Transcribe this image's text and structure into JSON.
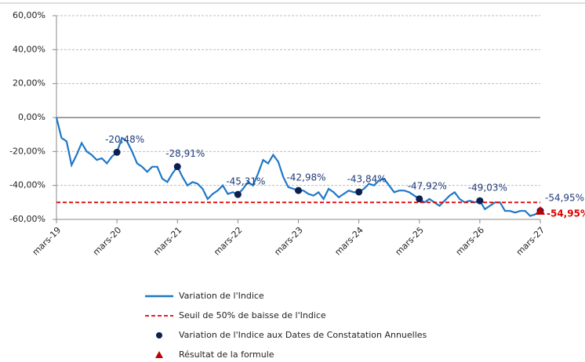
{
  "chart_data": {
    "type": "line",
    "categories": [
      "mars-19",
      null,
      null,
      null,
      null,
      null,
      null,
      null,
      null,
      null,
      null,
      null,
      "mars-20",
      null,
      null,
      null,
      null,
      null,
      null,
      null,
      null,
      null,
      null,
      null,
      "mars-21",
      null,
      null,
      null,
      null,
      null,
      null,
      null,
      null,
      null,
      null,
      null,
      "mars-22",
      null,
      null,
      null,
      null,
      null,
      null,
      null,
      null,
      null,
      null,
      null,
      "mars-23",
      null,
      null,
      null,
      null,
      null,
      null,
      null,
      null,
      null,
      null,
      null,
      "mars-24",
      null,
      null,
      null,
      null,
      null,
      null,
      null,
      null,
      null,
      null,
      null,
      "mars-25",
      null,
      null,
      null,
      null,
      null,
      null,
      null,
      null,
      null,
      null,
      null,
      "mars-26",
      null,
      null,
      null,
      null,
      null,
      null,
      null,
      null,
      null,
      null,
      null,
      "mars-27"
    ],
    "ylim": [
      -60,
      60
    ],
    "yticks": [
      {
        "value": -60,
        "label": "-60,00%"
      },
      {
        "value": -40,
        "label": "-40,00%"
      },
      {
        "value": -20,
        "label": "-20,00%"
      },
      {
        "value": 0,
        "label": "0,00%"
      },
      {
        "value": 20,
        "label": "20,00%"
      },
      {
        "value": 40,
        "label": "40,00%"
      },
      {
        "value": 60,
        "label": "60,00%"
      }
    ],
    "grid": true,
    "series": [
      {
        "name": "Variation de l'Indice",
        "color": "#1f77c8",
        "values": [
          0,
          -12,
          -14,
          -28,
          -22,
          -15,
          -20,
          -22,
          -25,
          -24,
          -27,
          -23,
          -20.48,
          -12,
          -14,
          -20,
          -27,
          -29,
          -32,
          -29,
          -29,
          -36,
          -38,
          -33,
          -28.91,
          -35,
          -40,
          -38,
          -39,
          -42,
          -48,
          -45,
          -43,
          -40,
          -45,
          -44,
          -45.31,
          -42,
          -38,
          -40,
          -33,
          -25,
          -27,
          -22,
          -26,
          -35,
          -41,
          -42,
          -42.98,
          -43,
          -45,
          -46,
          -44,
          -48,
          -42,
          -44,
          -47,
          -45,
          -43,
          -44,
          -43.84,
          -42,
          -39,
          -40,
          -37,
          -36,
          -40,
          -44,
          -43,
          -43,
          -44,
          -46,
          -47.92,
          -50,
          -48,
          -50,
          -52,
          -49,
          -46,
          -44,
          -48,
          -50,
          -49,
          -50,
          -49.03,
          -54,
          -52,
          -50,
          -50,
          -55,
          -55,
          -56,
          -55,
          -55,
          -58,
          -57,
          -54.95
        ]
      },
      {
        "name": "Seuil de 50% de baisse de l'Indice",
        "color": "#e00000",
        "dash": true,
        "value": -50
      },
      {
        "name": "Variation de l'Indice aux Dates de Constatation Annuelles",
        "color": "#0d1f4f",
        "marker": "circle",
        "label_color": "#1f3a78",
        "values": [
          null,
          null,
          null,
          null,
          null,
          null,
          null,
          null,
          null,
          null,
          null,
          null,
          -20.48,
          null,
          null,
          null,
          null,
          null,
          null,
          null,
          null,
          null,
          null,
          null,
          -28.91,
          null,
          null,
          null,
          null,
          null,
          null,
          null,
          null,
          null,
          null,
          null,
          -45.31,
          null,
          null,
          null,
          null,
          null,
          null,
          null,
          null,
          null,
          null,
          null,
          -42.98,
          null,
          null,
          null,
          null,
          null,
          null,
          null,
          null,
          null,
          null,
          null,
          -43.84,
          null,
          null,
          null,
          null,
          null,
          null,
          null,
          null,
          null,
          null,
          null,
          -47.92,
          null,
          null,
          null,
          null,
          null,
          null,
          null,
          null,
          null,
          null,
          null,
          -49.03,
          null,
          null,
          null,
          null,
          null,
          null,
          null,
          null,
          null,
          null,
          null,
          -54.95
        ],
        "value_labels": [
          null,
          null,
          null,
          null,
          null,
          null,
          null,
          null,
          null,
          null,
          null,
          null,
          "-20,48%",
          null,
          null,
          null,
          null,
          null,
          null,
          null,
          null,
          null,
          null,
          null,
          "-28,91%",
          null,
          null,
          null,
          null,
          null,
          null,
          null,
          null,
          null,
          null,
          null,
          "-45,31%",
          null,
          null,
          null,
          null,
          null,
          null,
          null,
          null,
          null,
          null,
          null,
          "-42,98%",
          null,
          null,
          null,
          null,
          null,
          null,
          null,
          null,
          null,
          null,
          null,
          "-43,84%",
          null,
          null,
          null,
          null,
          null,
          null,
          null,
          null,
          null,
          null,
          null,
          "-47,92%",
          null,
          null,
          null,
          null,
          null,
          null,
          null,
          null,
          null,
          null,
          null,
          "-49,03%",
          null,
          null,
          null,
          null,
          null,
          null,
          null,
          null,
          null,
          null,
          null,
          "-54,95%"
        ]
      },
      {
        "name": "Résultat de la formule",
        "color": "#c00000",
        "marker": "triangle",
        "label_color": "#e00000",
        "values": [
          null,
          null,
          null,
          null,
          null,
          null,
          null,
          null,
          null,
          null,
          null,
          null,
          null,
          null,
          null,
          null,
          null,
          null,
          null,
          null,
          null,
          null,
          null,
          null,
          null,
          null,
          null,
          null,
          null,
          null,
          null,
          null,
          null,
          null,
          null,
          null,
          null,
          null,
          null,
          null,
          null,
          null,
          null,
          null,
          null,
          null,
          null,
          null,
          null,
          null,
          null,
          null,
          null,
          null,
          null,
          null,
          null,
          null,
          null,
          null,
          null,
          null,
          null,
          null,
          null,
          null,
          null,
          null,
          null,
          null,
          null,
          null,
          null,
          null,
          null,
          null,
          null,
          null,
          null,
          null,
          null,
          null,
          null,
          null,
          null,
          null,
          null,
          null,
          null,
          null,
          null,
          null,
          null,
          null,
          null,
          null,
          -54.95
        ],
        "value_labels": [
          null,
          null,
          null,
          null,
          null,
          null,
          null,
          null,
          null,
          null,
          null,
          null,
          null,
          null,
          null,
          null,
          null,
          null,
          null,
          null,
          null,
          null,
          null,
          null,
          null,
          null,
          null,
          null,
          null,
          null,
          null,
          null,
          null,
          null,
          null,
          null,
          null,
          null,
          null,
          null,
          null,
          null,
          null,
          null,
          null,
          null,
          null,
          null,
          null,
          null,
          null,
          null,
          null,
          null,
          null,
          null,
          null,
          null,
          null,
          null,
          null,
          null,
          null,
          null,
          null,
          null,
          null,
          null,
          null,
          null,
          null,
          null,
          null,
          null,
          null,
          null,
          null,
          null,
          null,
          null,
          null,
          null,
          null,
          null,
          null,
          null,
          null,
          null,
          null,
          null,
          null,
          null,
          null,
          null,
          null,
          null,
          "-54,95%"
        ]
      }
    ]
  }
}
